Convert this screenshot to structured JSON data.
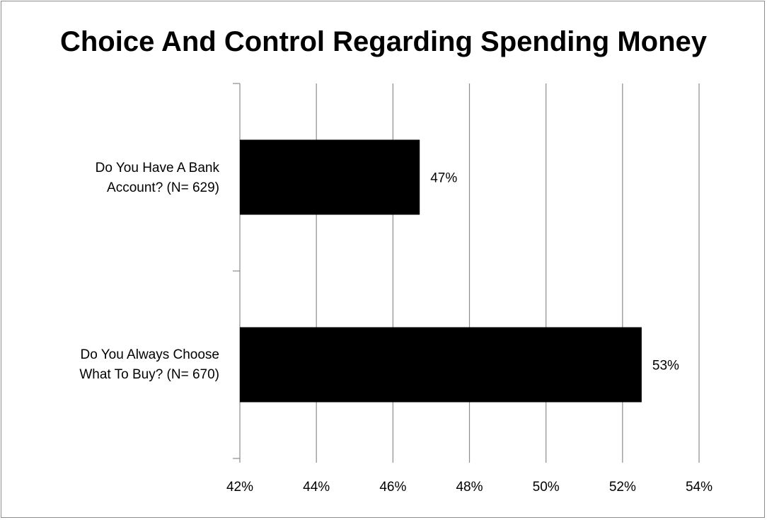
{
  "chart_data": {
    "type": "bar",
    "orientation": "horizontal",
    "title": "Choice And Control Regarding Spending Money",
    "categories": [
      {
        "line1": "Do You Have A Bank",
        "line2": "Account? (N= 629)"
      },
      {
        "line1": "Do You Always Choose",
        "line2": "What To Buy? (N= 670)"
      }
    ],
    "values": [
      46.7,
      52.5
    ],
    "data_labels": [
      "47%",
      "53%"
    ],
    "xlim": [
      42,
      54
    ],
    "xticks": [
      42,
      44,
      46,
      48,
      50,
      52,
      54
    ],
    "xtick_labels": [
      "42%",
      "44%",
      "46%",
      "48%",
      "50%",
      "52%",
      "54%"
    ],
    "grid": "vertical",
    "legend": "none",
    "bar_color": "#000000",
    "grid_color": "#8c8c8c"
  }
}
